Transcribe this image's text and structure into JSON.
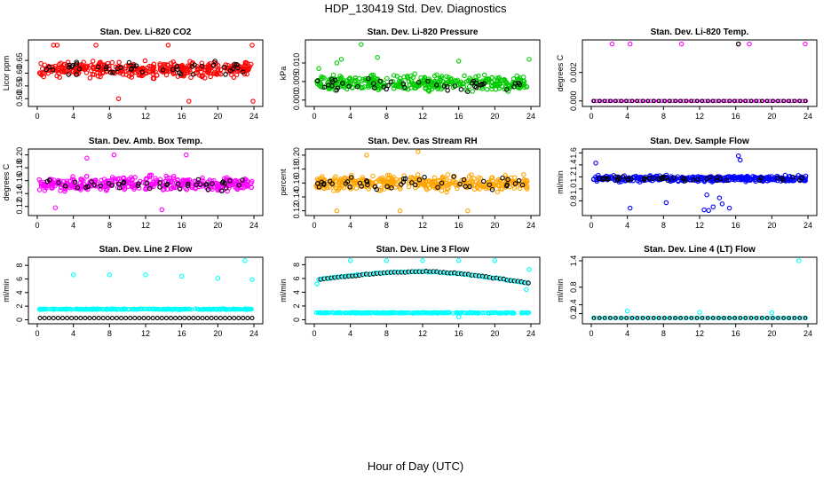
{
  "figure": {
    "title": "HDP_130419  Std. Dev. Diagnostics",
    "xlabel": "Hour of Day (UTC)"
  },
  "chart_data": [
    {
      "type": "scatter",
      "title": "Stan. Dev. Li-820 CO2",
      "ylabel": "Licor ppm",
      "xlim": [
        0,
        24
      ],
      "ylim": [
        0.48,
        0.72
      ],
      "xticks": [
        "0",
        "4",
        "8",
        "12",
        "16",
        "20",
        "24"
      ],
      "yticks": [
        "0.50",
        "0.55",
        "0.60",
        "0.65"
      ],
      "colors": {
        "cloud": "#ff0000",
        "black": "#000000"
      },
      "cloud": {
        "center": 0.615,
        "spread": 0.042,
        "count": 380
      },
      "black_points": {
        "center": 0.62,
        "spread": 0.035,
        "count": 45
      },
      "outliers": [
        [
          1.8,
          0.71
        ],
        [
          2.2,
          0.71
        ],
        [
          6.5,
          0.71
        ],
        [
          14.5,
          0.71
        ],
        [
          23.8,
          0.71
        ],
        [
          9.0,
          0.5
        ],
        [
          16.8,
          0.49
        ],
        [
          23.9,
          0.49
        ]
      ]
    },
    {
      "type": "scatter",
      "title": "Stan. Dev. Li-820 Pressure",
      "ylabel": "kPa",
      "xlim": [
        0,
        24
      ],
      "ylim": [
        -0.001,
        0.0155
      ],
      "xticks": [
        "0",
        "4",
        "8",
        "12",
        "16",
        "20",
        "24"
      ],
      "yticks": [
        "0.000",
        "0.005",
        "0.010"
      ],
      "colors": {
        "cloud": "#00cc00",
        "black": "#000000"
      },
      "cloud": {
        "center": 0.0045,
        "spread": 0.003,
        "count": 380
      },
      "black_points": {
        "center": 0.004,
        "spread": 0.0025,
        "count": 45
      },
      "outliers": [
        [
          0.5,
          0.0085
        ],
        [
          2.5,
          0.01
        ],
        [
          3.0,
          0.011
        ],
        [
          5.2,
          0.015
        ],
        [
          7.0,
          0.0115
        ],
        [
          16.0,
          0.0105
        ],
        [
          23.8,
          0.011
        ]
      ]
    },
    {
      "type": "scatter",
      "title": "Stan. Dev. Li-820 Temp.",
      "ylabel": "degrees C",
      "xlim": [
        0,
        24
      ],
      "ylim": [
        -0.0002,
        0.0041
      ],
      "xticks": [
        "0",
        "4",
        "8",
        "12",
        "16",
        "20",
        "24"
      ],
      "yticks": [
        "0.000",
        "0.002"
      ],
      "colors": {
        "cloud": "#ff00ff",
        "black": "#000000"
      },
      "baseline": 0.0,
      "outliers": [
        [
          2.3,
          0.004
        ],
        [
          4.3,
          0.004
        ],
        [
          10.0,
          0.004
        ],
        [
          16.3,
          0.004
        ],
        [
          17.5,
          0.004
        ],
        [
          23.7,
          0.004
        ]
      ]
    },
    {
      "type": "scatter",
      "title": "Stan. Dev. Amb. Box Temp.",
      "ylabel": "degrees C",
      "xlim": [
        0,
        24
      ],
      "ylim": [
        0.11,
        0.205
      ],
      "xticks": [
        "0",
        "4",
        "8",
        "12",
        "16",
        "20",
        "24"
      ],
      "yticks": [
        "0.12",
        "0.14",
        "0.16",
        "0.18",
        "0.20"
      ],
      "colors": {
        "cloud": "#ff00ff",
        "black": "#000000"
      },
      "cloud": {
        "center": 0.155,
        "spread": 0.016,
        "count": 380
      },
      "black_points": {
        "center": 0.155,
        "spread": 0.014,
        "count": 45
      },
      "outliers": [
        [
          5.5,
          0.195
        ],
        [
          8.5,
          0.2
        ],
        [
          16.5,
          0.2
        ],
        [
          2.0,
          0.118
        ],
        [
          13.8,
          0.115
        ]
      ]
    },
    {
      "type": "scatter",
      "title": "Stan. Dev. Gas Stream RH",
      "ylabel": "percent",
      "xlim": [
        0,
        24
      ],
      "ylim": [
        0.117,
        0.205
      ],
      "xticks": [
        "0",
        "4",
        "8",
        "12",
        "16",
        "20",
        "24"
      ],
      "yticks": [
        "0.12",
        "0.14",
        "0.16",
        "0.18",
        "0.20"
      ],
      "colors": {
        "cloud": "#ffa500",
        "black": "#000000"
      },
      "cloud": {
        "center": 0.16,
        "spread": 0.015,
        "count": 380
      },
      "black_points": {
        "center": 0.16,
        "spread": 0.013,
        "count": 45
      },
      "outliers": [
        [
          5.8,
          0.2
        ],
        [
          11.5,
          0.205
        ],
        [
          2.5,
          0.12
        ],
        [
          9.5,
          0.12
        ],
        [
          17.0,
          0.12
        ]
      ]
    },
    {
      "type": "scatter",
      "title": "Stan. Dev. Sample Flow",
      "ylabel": "ml/min",
      "xlim": [
        0,
        24
      ],
      "ylim": [
        0.6,
        1.62
      ],
      "xticks": [
        "0",
        "4",
        "8",
        "12",
        "16",
        "20",
        "24"
      ],
      "yticks": [
        "0.8",
        "1.0",
        "1.2",
        "1.4",
        "1.6"
      ],
      "colors": {
        "cloud": "#0000ff",
        "black": "#000000"
      },
      "cloud": {
        "center": 1.17,
        "spread": 0.07,
        "count": 380
      },
      "black_points": {
        "center": 1.17,
        "spread": 0.05,
        "count": 45
      },
      "outliers": [
        [
          0.5,
          1.43
        ],
        [
          4.3,
          0.68
        ],
        [
          8.3,
          0.77
        ],
        [
          12.5,
          0.65
        ],
        [
          13.0,
          0.64
        ],
        [
          13.5,
          0.7
        ],
        [
          14.5,
          0.75
        ],
        [
          15.3,
          0.68
        ],
        [
          16.3,
          1.55
        ],
        [
          16.5,
          1.48
        ],
        [
          14.2,
          0.85
        ],
        [
          12.8,
          0.9
        ]
      ]
    },
    {
      "type": "scatter",
      "title": "Stan. Dev. Line 2 Flow",
      "ylabel": "ml/min",
      "xlim": [
        0,
        24
      ],
      "ylim": [
        -0.2,
        8.8
      ],
      "xticks": [
        "0",
        "4",
        "8",
        "12",
        "16",
        "20",
        "24"
      ],
      "yticks": [
        "0",
        "2",
        "4",
        "6",
        "8"
      ],
      "colors": {
        "cloud": "#00ffff",
        "black": "#000000"
      },
      "band": {
        "center": 1.55,
        "spread": 0.12,
        "count": 300
      },
      "black_baseline": 0.25,
      "outliers": [
        [
          4.0,
          6.6
        ],
        [
          8.0,
          6.6
        ],
        [
          12.0,
          6.6
        ],
        [
          16.0,
          6.4
        ],
        [
          20.0,
          6.1
        ],
        [
          23.0,
          8.7
        ],
        [
          23.8,
          5.9
        ]
      ]
    },
    {
      "type": "scatter",
      "title": "Stan. Dev. Line 3 Flow",
      "ylabel": "ml/min",
      "xlim": [
        0,
        24
      ],
      "ylim": [
        -0.2,
        8.7
      ],
      "xticks": [
        "0",
        "4",
        "8",
        "12",
        "16",
        "20",
        "24"
      ],
      "yticks": [
        "0",
        "2",
        "4",
        "6",
        "8"
      ],
      "colors": {
        "cloud": "#00ffff",
        "black": "#000000"
      },
      "band": {
        "center": 1.0,
        "spread": 0.12,
        "count": 300
      },
      "curve": {
        "start": 5.8,
        "peak": 7.0,
        "end": 5.2
      },
      "outliers": [
        [
          0.3,
          5.2
        ],
        [
          4.0,
          8.6
        ],
        [
          8.0,
          8.6
        ],
        [
          12.0,
          8.6
        ],
        [
          16.0,
          8.6
        ],
        [
          20.0,
          8.6
        ],
        [
          23.8,
          7.3
        ],
        [
          23.5,
          4.4
        ],
        [
          16.0,
          0.4
        ]
      ]
    },
    {
      "type": "scatter",
      "title": "Stan. Dev. Line 4 (LT) Flow",
      "ylabel": "ml/min",
      "xlim": [
        0,
        24
      ],
      "ylim": [
        0.03,
        1.42
      ],
      "xticks": [
        "0",
        "4",
        "8",
        "12",
        "16",
        "20",
        "24"
      ],
      "yticks": [
        "0.2",
        "0.4",
        "0.8",
        "1.4"
      ],
      "colors": {
        "cloud": "#00ffff",
        "black": "#000000"
      },
      "baseline": 0.1,
      "outliers": [
        [
          4.0,
          0.26
        ],
        [
          12.0,
          0.23
        ],
        [
          20.0,
          0.22
        ],
        [
          23.0,
          1.4
        ]
      ]
    }
  ]
}
